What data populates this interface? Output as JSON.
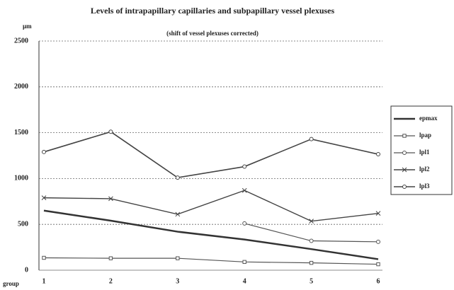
{
  "chart_data": {
    "type": "line",
    "title": "Levels of intrapapillary capillaries and subpapillary vessel plexuses",
    "subtitle": "(shift of vessel plexuses corrected)",
    "y_label": "µm",
    "x_label": "group",
    "categories": [
      "1",
      "2",
      "3",
      "4",
      "5",
      "6"
    ],
    "series": [
      {
        "name": "epmax",
        "color": "#333333",
        "marker": "none",
        "width": 2.5,
        "values": [
          650,
          540,
          420,
          335,
          230,
          120
        ]
      },
      {
        "name": "lpap",
        "color": "#555555",
        "marker": "square",
        "width": 1.2,
        "values": [
          135,
          130,
          130,
          90,
          80,
          65
        ]
      },
      {
        "name": "lpl1",
        "color": "#555555",
        "marker": "circle",
        "width": 1.2,
        "values": [
          null,
          null,
          null,
          510,
          320,
          310
        ]
      },
      {
        "name": "lpl2",
        "color": "#444444",
        "marker": "x",
        "width": 1.4,
        "values": [
          790,
          780,
          610,
          870,
          535,
          620
        ]
      },
      {
        "name": "lpl3",
        "color": "#444444",
        "marker": "circle",
        "width": 1.6,
        "values": [
          1290,
          1510,
          1010,
          1130,
          1430,
          1265
        ]
      }
    ],
    "ylim": [
      0,
      2500
    ],
    "yticks": [
      0,
      500,
      1000,
      1500,
      2000,
      2500
    ],
    "grid": true,
    "legend": "right"
  }
}
